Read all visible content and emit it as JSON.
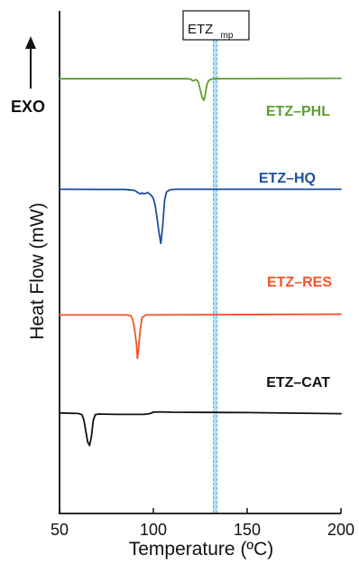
{
  "chart_data": {
    "type": "line",
    "xlabel": "Temperature (ºC)",
    "ylabel": "Heat Flow (mW)",
    "xlim": [
      50,
      200
    ],
    "x_ticks": [
      "50",
      "100",
      "150",
      "200"
    ],
    "x_tick_values": [
      50,
      100,
      150,
      200
    ],
    "grid": false,
    "exo_label": "EXO",
    "reference_band": {
      "label_main": "ETZ",
      "label_sub": "mp",
      "x_range": [
        132,
        134
      ],
      "color": "#a8d8f5"
    },
    "series": [
      {
        "name": "ETZ–PHL",
        "color": "#5aa02c",
        "baseline_frac": 0.135,
        "points": [
          [
            50,
            0.0
          ],
          [
            110,
            0.0
          ],
          [
            118,
            0.0
          ],
          [
            120,
            -0.3
          ],
          [
            121,
            -1.2
          ],
          [
            122,
            -0.8
          ],
          [
            123,
            -0.5
          ],
          [
            124,
            -2.0
          ],
          [
            125,
            -6.0
          ],
          [
            126,
            -10.5
          ],
          [
            127,
            -12.0
          ],
          [
            127.8,
            -8.0
          ],
          [
            128.5,
            -3.5
          ],
          [
            129.5,
            -1.0
          ],
          [
            131,
            -0.2
          ],
          [
            133,
            0.0
          ],
          [
            200,
            0.2
          ]
        ]
      },
      {
        "name": "ETZ–HQ",
        "color": "#1f4e9c",
        "baseline_frac": 0.355,
        "points": [
          [
            50,
            0.0
          ],
          [
            85,
            -0.1
          ],
          [
            90,
            -0.6
          ],
          [
            92,
            -2.0
          ],
          [
            93,
            -2.6
          ],
          [
            94,
            -2.0
          ],
          [
            95,
            -2.6
          ],
          [
            96,
            -2.2
          ],
          [
            97,
            -1.8
          ],
          [
            98,
            -2.6
          ],
          [
            99,
            -3.5
          ],
          [
            100,
            -5.0
          ],
          [
            101,
            -9.0
          ],
          [
            102,
            -16.0
          ],
          [
            103,
            -24.0
          ],
          [
            104,
            -30.0
          ],
          [
            105,
            -20.0
          ],
          [
            106,
            -6.0
          ],
          [
            107,
            -1.5
          ],
          [
            109,
            -0.2
          ],
          [
            112,
            0.0
          ],
          [
            200,
            0.0
          ]
        ]
      },
      {
        "name": "ETZ–RES",
        "color": "#f0552a",
        "baseline_frac": 0.605,
        "points": [
          [
            50,
            0.0
          ],
          [
            86,
            0.0
          ],
          [
            88,
            -0.5
          ],
          [
            89,
            -2.5
          ],
          [
            90,
            -8.0
          ],
          [
            91,
            -16.0
          ],
          [
            91.5,
            -24.0
          ],
          [
            92,
            -20.0
          ],
          [
            93,
            -8.0
          ],
          [
            94,
            -1.5
          ],
          [
            96,
            0.0
          ],
          [
            200,
            0.4
          ]
        ]
      },
      {
        "name": "ETZ–CAT",
        "color": "#111111",
        "baseline_frac": 0.8,
        "points": [
          [
            50,
            0.0
          ],
          [
            60,
            -0.3
          ],
          [
            62,
            -1.0
          ],
          [
            63,
            -4.0
          ],
          [
            64,
            -10.0
          ],
          [
            65,
            -16.0
          ],
          [
            66,
            -18.0
          ],
          [
            67,
            -13.0
          ],
          [
            68,
            -4.0
          ],
          [
            69,
            -1.0
          ],
          [
            71,
            -0.6
          ],
          [
            80,
            -0.8
          ],
          [
            95,
            -0.8
          ],
          [
            98,
            -0.4
          ],
          [
            100,
            0.4
          ],
          [
            103,
            0.6
          ],
          [
            110,
            0.4
          ],
          [
            130,
            0.3
          ],
          [
            150,
            0.2
          ],
          [
            200,
            -0.4
          ]
        ]
      }
    ]
  }
}
